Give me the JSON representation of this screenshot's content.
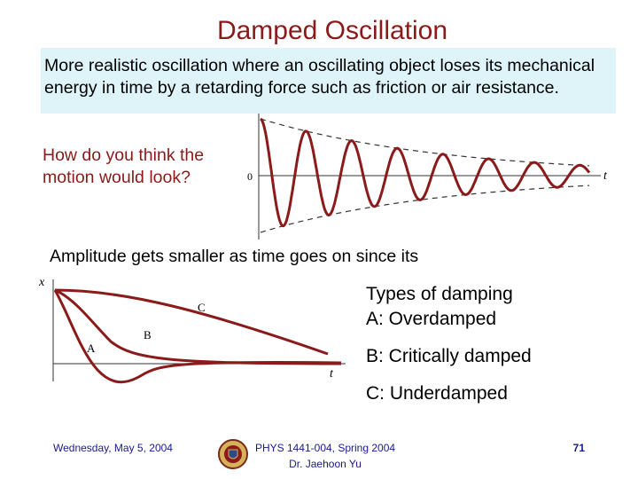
{
  "slide": {
    "title": "Damped Oscillation",
    "intro": "More realistic oscillation where an oscillating object loses its mechanical energy in time by a retarding force such as friction or air resistance.",
    "question": "How do you think the motion would look?",
    "amplitude_note": "Amplitude gets smaller as time goes on since its",
    "types": {
      "heading": "Types of damping",
      "a": "A: Overdamped",
      "b": "B: Critically damped",
      "c": "C: Underdamped"
    }
  },
  "figure_top": {
    "zero_label": "0",
    "t_label": "t"
  },
  "figure_bottom": {
    "x_label": "x",
    "t_label": "t",
    "curve_labels": {
      "a": "A",
      "b": "B",
      "c": "C"
    }
  },
  "footer": {
    "date": "Wednesday, May 5, 2004",
    "course": "PHYS 1441-004, Spring 2004",
    "instructor": "Dr. Jaehoon Yu",
    "page": "71"
  },
  "colors": {
    "title": "#8b1a1a",
    "highlight_bg": "#dff4f8",
    "curve": "#8b1a1a",
    "footer_text": "#1a1a8c"
  }
}
